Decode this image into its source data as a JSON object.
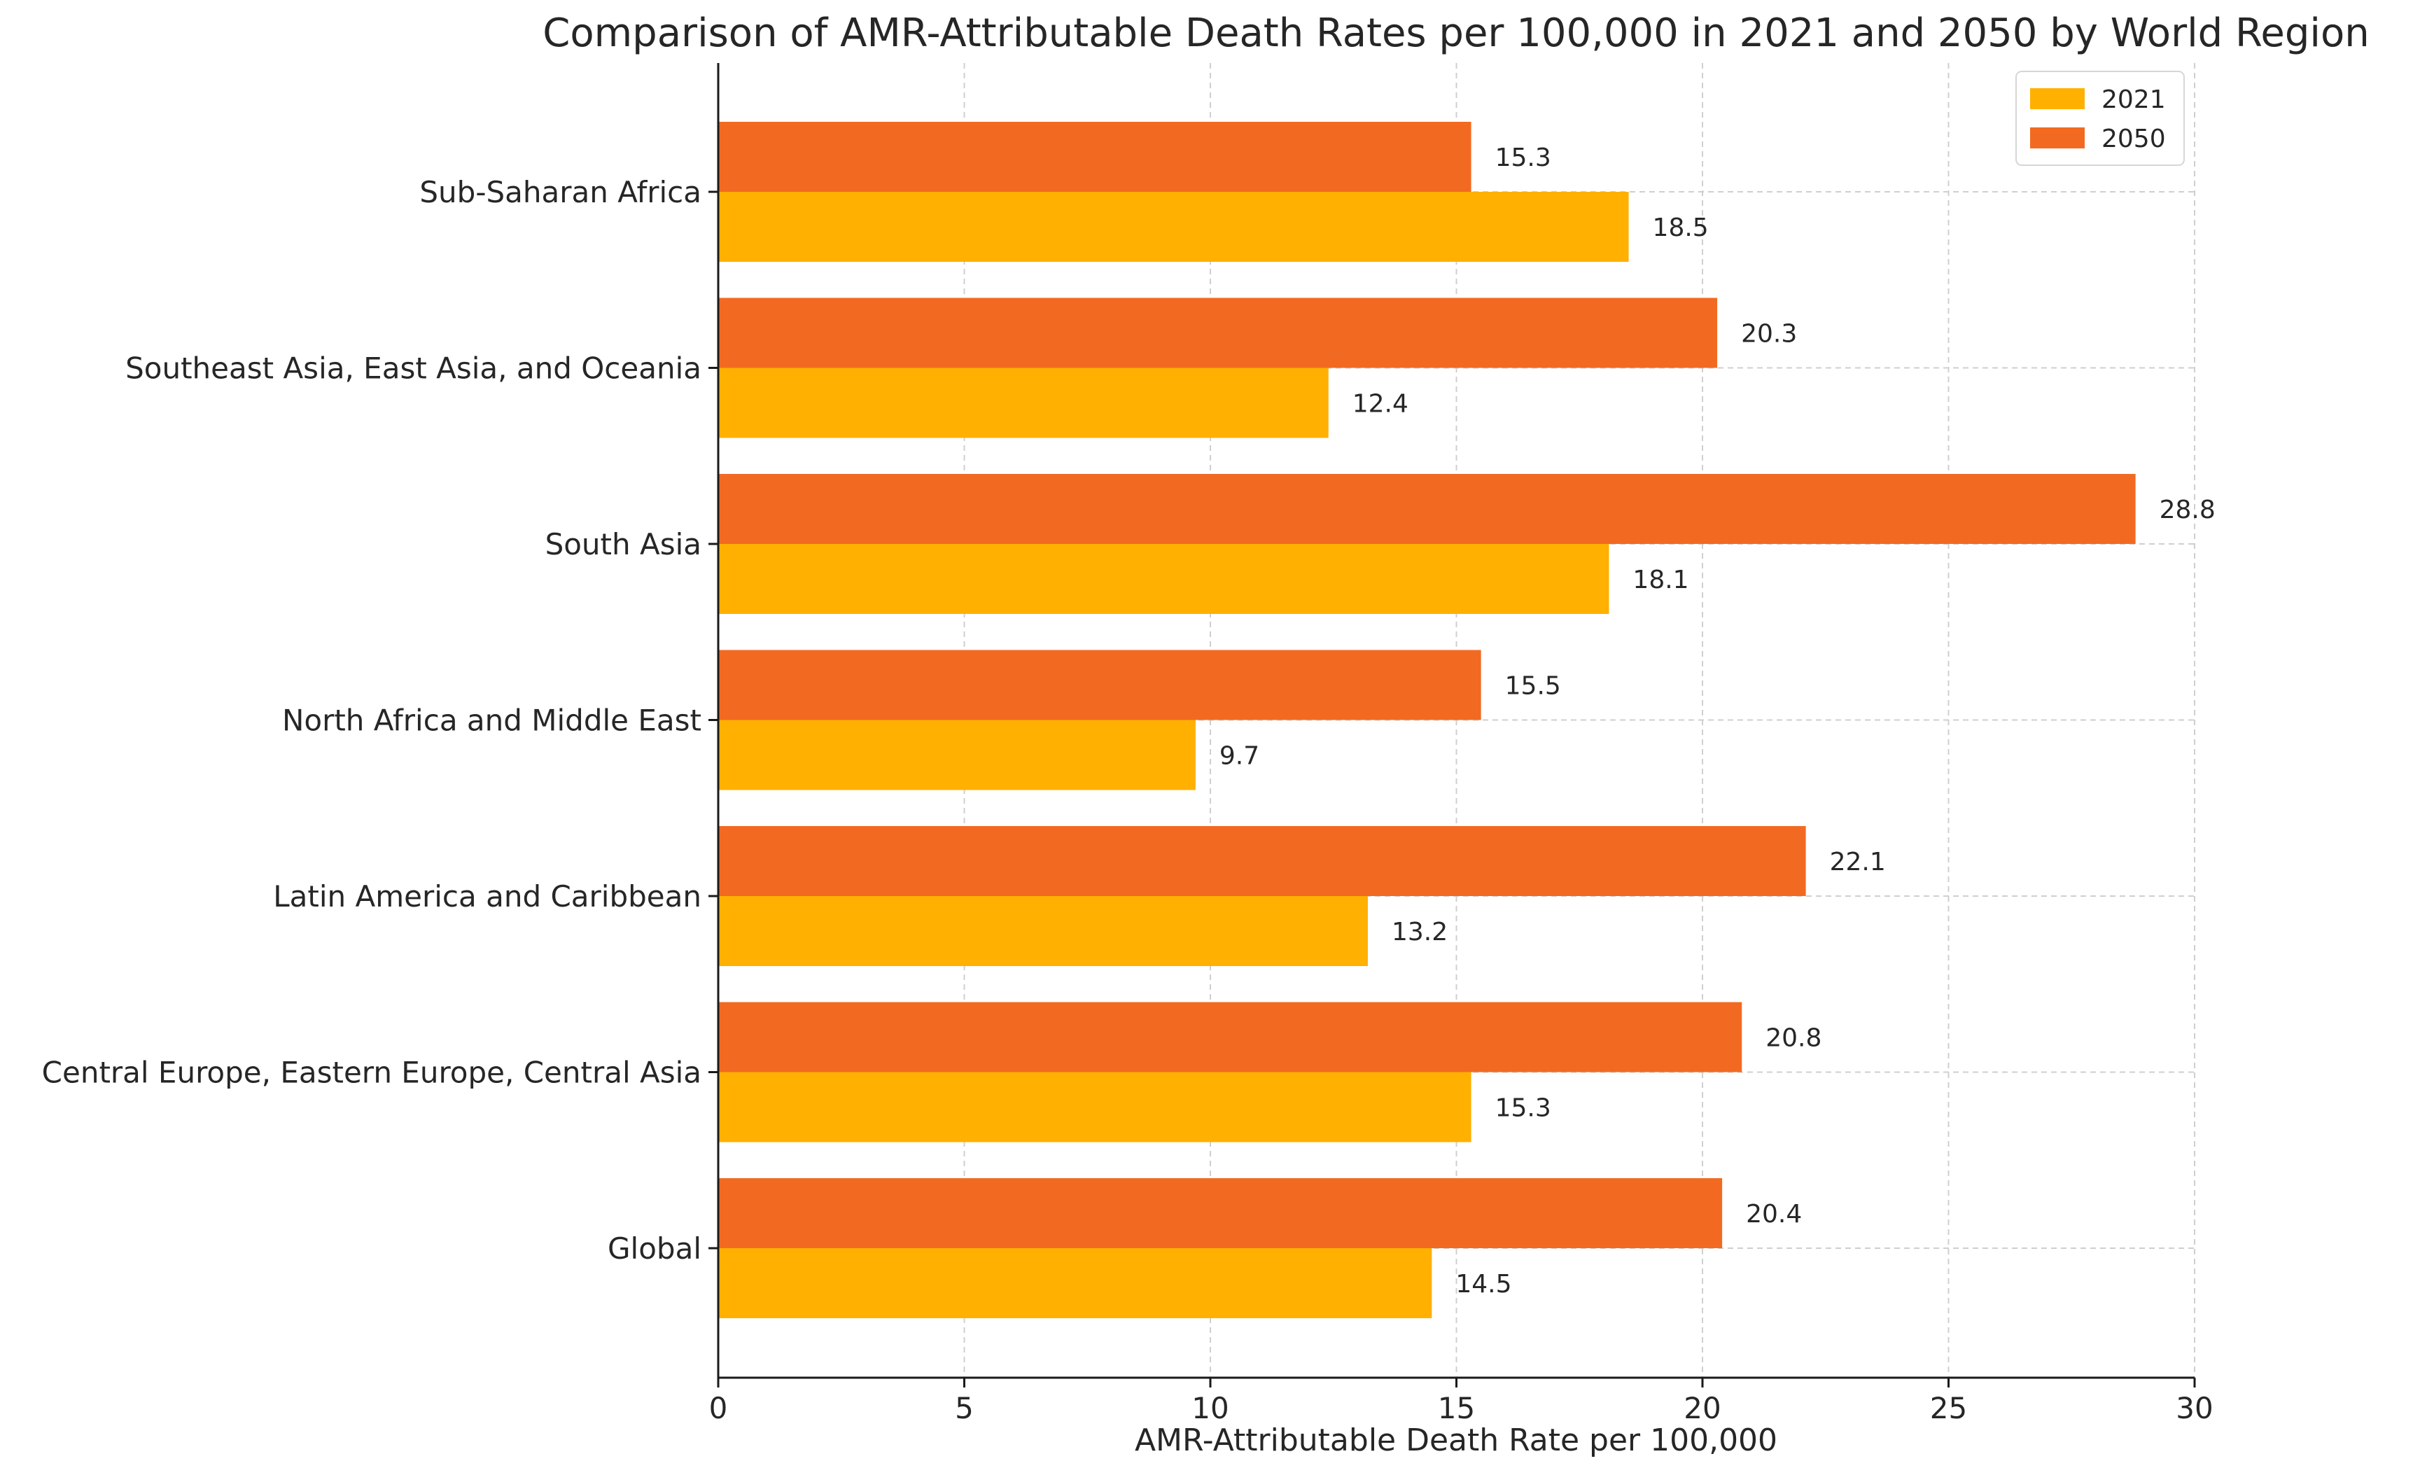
{
  "chart_data": {
    "type": "bar",
    "orientation": "horizontal",
    "title": "Comparison of AMR-Attributable Death Rates per 100,000 in 2021 and 2050 by World Region",
    "xlabel": "AMR-Attributable Death Rate per 100,000",
    "ylabel": "",
    "xlim": [
      0,
      30
    ],
    "xticks": [
      0,
      5,
      10,
      15,
      20,
      25,
      30
    ],
    "grid": true,
    "legend_position": "top-right",
    "categories": [
      "Global",
      "Central Europe, Eastern Europe, Central Asia",
      "Latin America and Caribbean",
      "North Africa and Middle East",
      "South Asia",
      "Southeast Asia, East Asia, and Oceania",
      "Sub-Saharan Africa"
    ],
    "series": [
      {
        "name": "2021",
        "color": "#FFB000",
        "values": [
          14.5,
          15.3,
          13.2,
          9.7,
          18.1,
          12.4,
          18.5
        ],
        "labels": [
          "14.5",
          "15.3",
          "13.2",
          "9.7",
          "18.1",
          "12.4",
          "18.5"
        ]
      },
      {
        "name": "2050",
        "color": "#F26A21",
        "values": [
          20.4,
          20.8,
          22.1,
          15.5,
          28.8,
          20.3,
          15.3
        ],
        "labels": [
          "20.4",
          "20.8",
          "22.1",
          "15.5",
          "28.8",
          "20.3",
          "15.3"
        ]
      }
    ]
  }
}
